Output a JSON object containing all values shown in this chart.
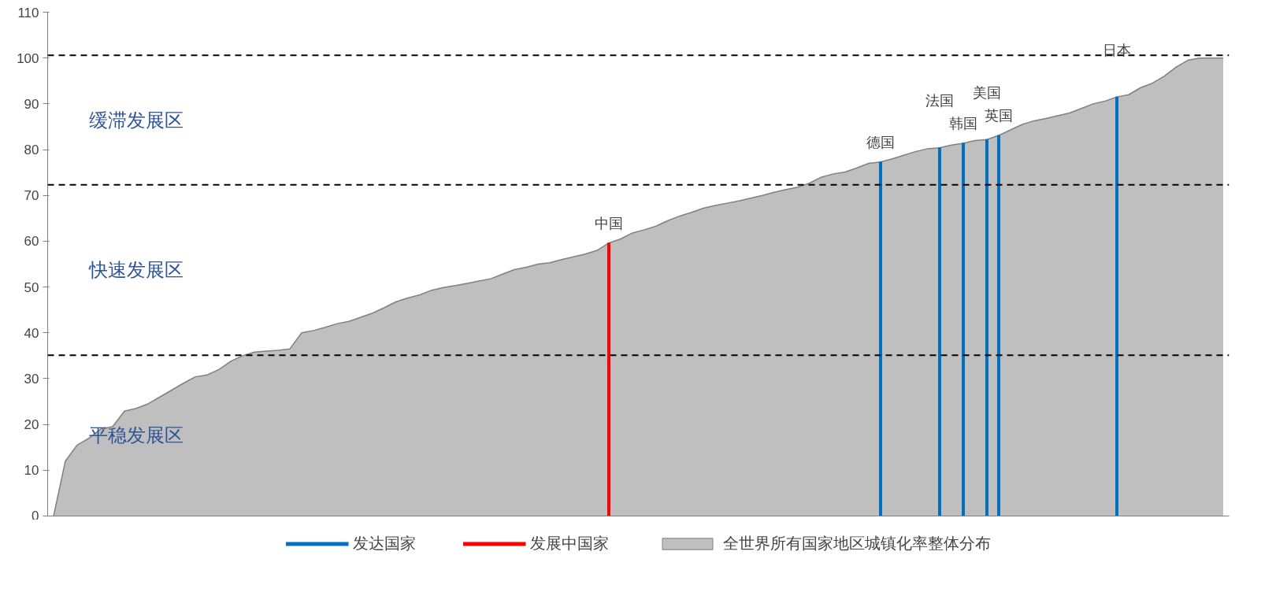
{
  "chart_data": {
    "type": "area",
    "categories": [
      null,
      null,
      null,
      null,
      null,
      null,
      null,
      null,
      null,
      null,
      null,
      null,
      null,
      null,
      null,
      null,
      null,
      null,
      null,
      null,
      null,
      null,
      null,
      null,
      null,
      null,
      null,
      null,
      null,
      null,
      null,
      null,
      null,
      null,
      null,
      null,
      null,
      null,
      null,
      null,
      null,
      null,
      null,
      null,
      null,
      null,
      null,
      "中国",
      null,
      null,
      null,
      null,
      null,
      null,
      null,
      null,
      null,
      null,
      null,
      null,
      null,
      null,
      null,
      null,
      null,
      null,
      null,
      null,
      null,
      null,
      "德国",
      null,
      null,
      null,
      null,
      "法国",
      null,
      "韩国",
      null,
      "美国",
      "英国",
      null,
      null,
      null,
      null,
      null,
      null,
      null,
      null,
      null,
      "日本",
      null,
      null,
      null,
      null,
      null,
      null,
      null,
      null,
      null
    ],
    "series": [
      {
        "name": "全世界所有国家地区城镇化率整体分布",
        "color": "#bfbfbf",
        "values": [
          0,
          12,
          15.5,
          17,
          19,
          19.5,
          22.9,
          23.5,
          24.5,
          26,
          27.5,
          29,
          30.4,
          30.8,
          32,
          33.8,
          35,
          35.8,
          36,
          36.2,
          36.5,
          40,
          40.5,
          41.2,
          42,
          42.5,
          43.4,
          44.3,
          45.5,
          46.8,
          47.6,
          48.3,
          49.3,
          49.9,
          50.3,
          50.8,
          51.3,
          51.8,
          52.8,
          53.8,
          54.3,
          55,
          55.3,
          56,
          56.6,
          57.2,
          58,
          59.6,
          60.5,
          61.8,
          62.5,
          63.3,
          64.5,
          65.5,
          66.3,
          67.2,
          67.8,
          68.3,
          68.8,
          69.4,
          70,
          70.7,
          71.3,
          71.8,
          72.7,
          74,
          74.7,
          75.1,
          76,
          77,
          77.3,
          78,
          78.8,
          79.6,
          80.2,
          80.4,
          81,
          81.4,
          82,
          82.2,
          83.1,
          84.3,
          85.5,
          86.3,
          86.8,
          87.4,
          88,
          89,
          90,
          90.6,
          91.5,
          92,
          93.5,
          94.5,
          96,
          98,
          99.5,
          100,
          100,
          100
        ]
      },
      {
        "name": "发达国家",
        "type": "bar",
        "color": "#0070c0",
        "values": [
          null,
          null,
          null,
          null,
          null,
          null,
          null,
          null,
          null,
          null,
          null,
          null,
          null,
          null,
          null,
          null,
          null,
          null,
          null,
          null,
          null,
          null,
          null,
          null,
          null,
          null,
          null,
          null,
          null,
          null,
          null,
          null,
          null,
          null,
          null,
          null,
          null,
          null,
          null,
          null,
          null,
          null,
          null,
          null,
          null,
          null,
          null,
          null,
          null,
          null,
          null,
          null,
          null,
          null,
          null,
          null,
          null,
          null,
          null,
          null,
          null,
          null,
          null,
          null,
          null,
          null,
          null,
          null,
          null,
          null,
          77.3,
          null,
          null,
          null,
          null,
          80.4,
          null,
          81.4,
          null,
          82.2,
          83.1,
          null,
          null,
          null,
          null,
          null,
          null,
          null,
          null,
          null,
          91.5,
          null,
          null,
          null,
          null,
          null,
          null,
          null,
          null,
          null
        ]
      },
      {
        "name": "发展中国家",
        "type": "bar",
        "color": "#ff0000",
        "values": [
          null,
          null,
          null,
          null,
          null,
          null,
          null,
          null,
          null,
          null,
          null,
          null,
          null,
          null,
          null,
          null,
          null,
          null,
          null,
          null,
          null,
          null,
          null,
          null,
          null,
          null,
          null,
          null,
          null,
          null,
          null,
          null,
          null,
          null,
          null,
          null,
          null,
          null,
          null,
          null,
          null,
          null,
          null,
          null,
          null,
          null,
          null,
          59.6,
          null,
          null,
          null,
          null,
          null,
          null,
          null,
          null,
          null,
          null,
          null,
          null,
          null,
          null,
          null,
          null,
          null,
          null,
          null,
          null,
          null,
          null,
          null,
          null,
          null,
          null,
          null,
          null,
          null,
          null,
          null,
          null,
          null,
          null,
          null,
          null,
          null,
          null,
          null,
          null,
          null,
          null,
          null,
          null,
          null,
          null,
          null,
          null,
          null,
          null,
          null,
          null
        ]
      }
    ],
    "ylim": [
      0,
      110
    ],
    "yticks": [
      0,
      10,
      20,
      30,
      40,
      50,
      60,
      70,
      80,
      90,
      100,
      110
    ],
    "ref_lines": [
      {
        "axis": "y",
        "value": 100.6,
        "color": "#000000",
        "line_style": "dashed"
      },
      {
        "axis": "y",
        "value": 72.3,
        "color": "#000000",
        "line_style": "dashed"
      },
      {
        "axis": "y",
        "value": 35.1,
        "color": "#000000",
        "line_style": "dashed"
      }
    ],
    "annotations": [
      "缓滞发展区",
      "快速发展区",
      "平稳发展区"
    ],
    "tick_labels": "y",
    "grid": false,
    "legend": "bottom"
  }
}
